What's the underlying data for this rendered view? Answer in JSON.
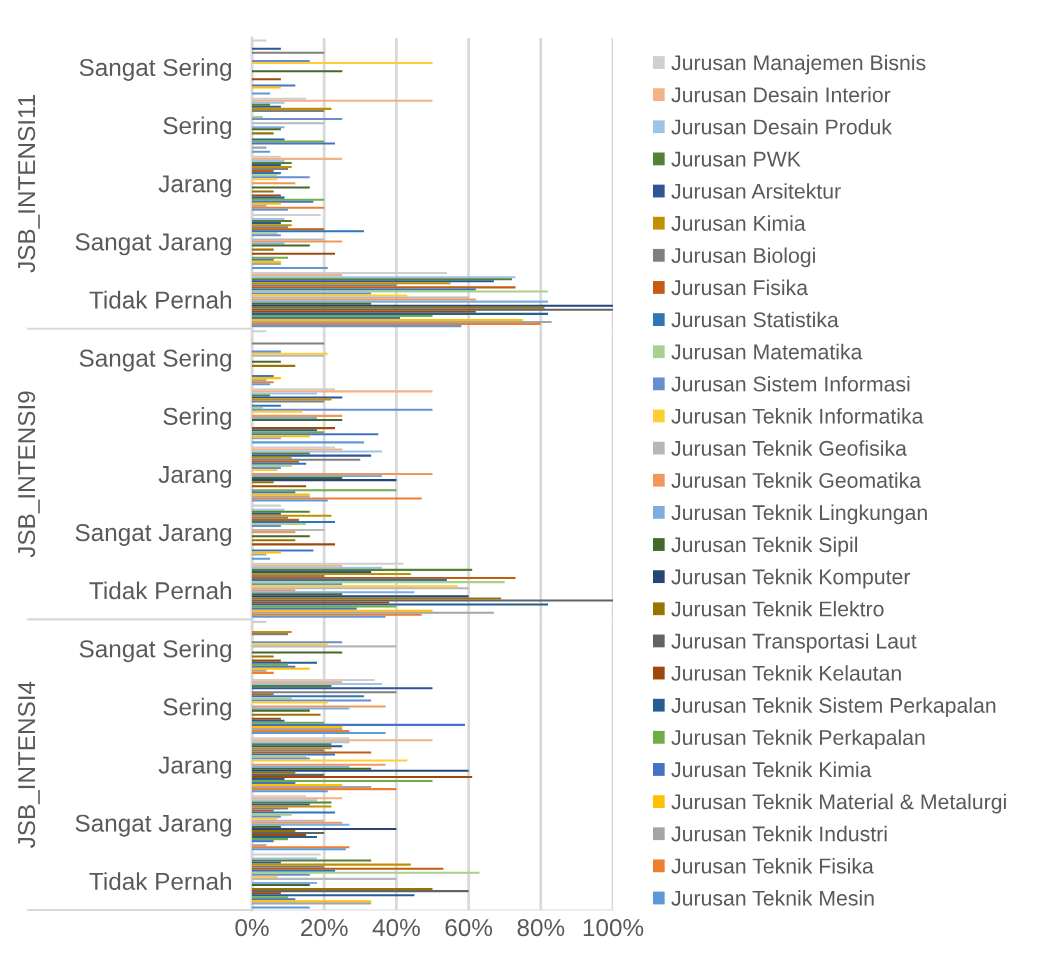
{
  "chart_data": [
    {
      "type": "bar",
      "orientation": "horizontal",
      "ylabel": "JSB_INTENSI11",
      "categories": [
        "Sangat Sering",
        "Sering",
        "Jarang",
        "Sangat Jarang",
        "Tidak Pernah"
      ],
      "xlim": [
        0,
        100
      ],
      "xticks": [
        0,
        20,
        40,
        60,
        80,
        100
      ],
      "grid": "x",
      "tick_labels": "y",
      "legend": "right",
      "series": [
        {
          "name": "Jurusan Manajemen Bisnis",
          "color": "#cfcfcf",
          "values": [
            4,
            15,
            8,
            19,
            54
          ]
        },
        {
          "name": "Jurusan Desain Interior",
          "color": "#f4b183",
          "values": [
            null,
            50,
            25,
            null,
            25
          ]
        },
        {
          "name": "Jurusan Desain Produk",
          "color": "#9dc3e6",
          "values": [
            null,
            9,
            9,
            9,
            73
          ]
        },
        {
          "name": "Jurusan PWK",
          "color": "#548235",
          "values": [
            null,
            5,
            11,
            11,
            72
          ]
        },
        {
          "name": "Jurusan Arsitektur",
          "color": "#2f5597",
          "values": [
            8,
            8,
            8,
            8,
            67
          ]
        },
        {
          "name": "Jurusan Kimia",
          "color": "#bf9000",
          "values": [
            null,
            22,
            11,
            11,
            55
          ]
        },
        {
          "name": "Jurusan Biologi",
          "color": "#7f7f7f",
          "values": [
            20,
            20,
            10,
            10,
            40
          ]
        },
        {
          "name": "Jurusan Fisika",
          "color": "#c55a11",
          "values": [
            null,
            null,
            6,
            20,
            73
          ]
        },
        {
          "name": "Jurusan Statistika",
          "color": "#2e75b6",
          "values": [
            null,
            null,
            8,
            31,
            62
          ]
        },
        {
          "name": "Jurusan Matematika",
          "color": "#a9d18e",
          "values": [
            null,
            3,
            7,
            7,
            82
          ]
        },
        {
          "name": "Jurusan Sistem Informasi",
          "color": "#698ed0",
          "values": [
            16,
            25,
            16,
            8,
            33
          ]
        },
        {
          "name": "Jurusan Teknik Informatika",
          "color": "#ffcd33",
          "values": [
            50,
            null,
            7,
            null,
            43
          ]
        },
        {
          "name": "Jurusan Teknik Geofisika",
          "color": "#b7b7b7",
          "values": [
            null,
            20,
            null,
            20,
            60
          ]
        },
        {
          "name": "Jurusan Teknik Geomatika",
          "color": "#f1975a",
          "values": [
            null,
            null,
            12,
            25,
            62
          ]
        },
        {
          "name": "Jurusan Teknik Lingkungan",
          "color": "#7cafdd",
          "values": [
            null,
            9,
            null,
            9,
            82
          ]
        },
        {
          "name": "Jurusan Teknik Sipil",
          "color": "#43682b",
          "values": [
            25,
            8,
            16,
            16,
            33
          ]
        },
        {
          "name": "Jurusan Teknik Komputer",
          "color": "#264478",
          "values": [
            null,
            null,
            null,
            null,
            100
          ]
        },
        {
          "name": "Jurusan Teknik Elektro",
          "color": "#997300",
          "values": [
            null,
            6,
            6,
            6,
            81
          ]
        },
        {
          "name": "Jurusan Transportasi Laut",
          "color": "#636363",
          "values": [
            null,
            null,
            null,
            null,
            100
          ]
        },
        {
          "name": "Jurusan Teknik Kelautan",
          "color": "#9e480e",
          "values": [
            8,
            null,
            8,
            23,
            62
          ]
        },
        {
          "name": "Jurusan Teknik Sistem Perkapalan",
          "color": "#255e91",
          "values": [
            null,
            9,
            9,
            null,
            82
          ]
        },
        {
          "name": "Jurusan Teknik Perkapalan",
          "color": "#70ad47",
          "values": [
            null,
            20,
            20,
            10,
            50
          ]
        },
        {
          "name": "Jurusan Teknik Kimia",
          "color": "#4472c4",
          "values": [
            12,
            23,
            17,
            6,
            41
          ]
        },
        {
          "name": "Jurusan Teknik Material & Metalurgi",
          "color": "#ffc000",
          "values": [
            8,
            null,
            8,
            8,
            75
          ]
        },
        {
          "name": "Jurusan Teknik Industri",
          "color": "#a5a5a5",
          "values": [
            null,
            4,
            4,
            8,
            83
          ]
        },
        {
          "name": "Jurusan Teknik Fisika",
          "color": "#ed7d31",
          "values": [
            null,
            null,
            20,
            null,
            80
          ]
        },
        {
          "name": "Jurusan Teknik Mesin",
          "color": "#5b9bd5",
          "values": [
            5,
            5,
            10,
            21,
            58
          ]
        }
      ]
    },
    {
      "type": "bar",
      "orientation": "horizontal",
      "ylabel": "JSB_INTENSI9",
      "categories": [
        "Sangat Sering",
        "Sering",
        "Jarang",
        "Sangat Jarang",
        "Tidak Pernah"
      ],
      "xlim": [
        0,
        100
      ],
      "xticks": [
        0,
        20,
        40,
        60,
        80,
        100
      ],
      "grid": "x",
      "tick_labels": "y",
      "series": [
        {
          "color": "#cfcfcf",
          "values": [
            4,
            23,
            23,
            8,
            42
          ]
        },
        {
          "color": "#f4b183",
          "values": [
            null,
            50,
            25,
            null,
            25
          ]
        },
        {
          "color": "#9dc3e6",
          "values": [
            null,
            18,
            36,
            9,
            36
          ]
        },
        {
          "color": "#548235",
          "values": [
            null,
            5,
            16,
            16,
            61
          ]
        },
        {
          "color": "#2f5597",
          "values": [
            null,
            25,
            33,
            8,
            33
          ]
        },
        {
          "color": "#bf9000",
          "values": [
            null,
            22,
            11,
            22,
            44
          ]
        },
        {
          "color": "#7f7f7f",
          "values": [
            20,
            20,
            30,
            10,
            20
          ]
        },
        {
          "color": "#c55a11",
          "values": [
            null,
            null,
            13,
            13,
            73
          ]
        },
        {
          "color": "#2e75b6",
          "values": [
            null,
            8,
            15,
            23,
            54
          ]
        },
        {
          "color": "#a9d18e",
          "values": [
            null,
            3,
            11,
            15,
            70
          ]
        },
        {
          "color": "#698ed0",
          "values": [
            8,
            50,
            8,
            8,
            25
          ]
        },
        {
          "color": "#ffcd33",
          "values": [
            21,
            14,
            7,
            null,
            57
          ]
        },
        {
          "color": "#b7b7b7",
          "values": [
            20,
            null,
            null,
            20,
            60
          ]
        },
        {
          "color": "#f1975a",
          "values": [
            null,
            25,
            50,
            12,
            12
          ]
        },
        {
          "color": "#7cafdd",
          "values": [
            null,
            18,
            36,
            null,
            45
          ]
        },
        {
          "color": "#43682b",
          "values": [
            8,
            25,
            25,
            16,
            25
          ]
        },
        {
          "color": "#264478",
          "values": [
            null,
            null,
            40,
            null,
            60
          ]
        },
        {
          "color": "#997300",
          "values": [
            12,
            null,
            6,
            12,
            69
          ]
        },
        {
          "color": "#636363",
          "values": [
            null,
            null,
            null,
            null,
            100
          ]
        },
        {
          "color": "#9e480e",
          "values": [
            null,
            23,
            15,
            23,
            38
          ]
        },
        {
          "color": "#255e91",
          "values": [
            null,
            18,
            null,
            null,
            82
          ]
        },
        {
          "color": "#70ad47",
          "values": [
            null,
            20,
            40,
            null,
            40
          ]
        },
        {
          "color": "#4472c4",
          "values": [
            6,
            35,
            12,
            17,
            29
          ]
        },
        {
          "color": "#ffc000",
          "values": [
            8,
            16,
            16,
            8,
            50
          ]
        },
        {
          "color": "#a5a5a5",
          "values": [
            4,
            8,
            16,
            4,
            67
          ]
        },
        {
          "color": "#ed7d31",
          "values": [
            6,
            null,
            47,
            null,
            47
          ]
        },
        {
          "color": "#5b9bd5",
          "values": [
            5,
            31,
            21,
            5,
            37
          ]
        }
      ]
    },
    {
      "type": "bar",
      "orientation": "horizontal",
      "ylabel": "JSB_INTENSI4",
      "categories": [
        "Sangat Sering",
        "Sering",
        "Jarang",
        "Sangat Jarang",
        "Tidak Pernah"
      ],
      "xlim": [
        0,
        100
      ],
      "xticks": [
        {
          "value": 0,
          "label": "0%"
        },
        {
          "value": 20,
          "label": "20%"
        },
        {
          "value": 40,
          "label": "40%"
        },
        {
          "value": 60,
          "label": "60%"
        },
        {
          "value": 80,
          "label": "80%"
        },
        {
          "value": 100,
          "label": "100%"
        }
      ],
      "grid": "x",
      "series": [
        {
          "color": "#cfcfcf",
          "values": [
            4,
            34,
            27,
            15,
            19
          ]
        },
        {
          "color": "#f4b183",
          "values": [
            null,
            25,
            50,
            25,
            null
          ]
        },
        {
          "color": "#9dc3e6",
          "values": [
            null,
            36,
            27,
            18,
            18
          ]
        },
        {
          "color": "#548235",
          "values": [
            null,
            22,
            22,
            22,
            33
          ]
        },
        {
          "color": "#2f5597",
          "values": [
            null,
            50,
            25,
            16,
            8
          ]
        },
        {
          "color": "#bf9000",
          "values": [
            11,
            null,
            22,
            22,
            44
          ]
        },
        {
          "color": "#7f7f7f",
          "values": [
            10,
            40,
            20,
            10,
            20
          ]
        },
        {
          "color": "#c55a11",
          "values": [
            null,
            6,
            33,
            6,
            53
          ]
        },
        {
          "color": "#2e75b6",
          "values": [
            null,
            31,
            23,
            23,
            23
          ]
        },
        {
          "color": "#a9d18e",
          "values": [
            null,
            11,
            15,
            11,
            63
          ]
        },
        {
          "color": "#698ed0",
          "values": [
            25,
            33,
            16,
            8,
            16
          ]
        },
        {
          "color": "#ffcd33",
          "values": [
            21,
            21,
            43,
            7,
            7
          ]
        },
        {
          "color": "#b7b7b7",
          "values": [
            40,
            null,
            null,
            20,
            40
          ]
        },
        {
          "color": "#f1975a",
          "values": [
            null,
            37,
            37,
            25,
            null
          ]
        },
        {
          "color": "#7cafdd",
          "values": [
            null,
            27,
            27,
            27,
            18
          ]
        },
        {
          "color": "#43682b",
          "values": [
            25,
            16,
            33,
            8,
            16
          ]
        },
        {
          "color": "#264478",
          "values": [
            null,
            null,
            60,
            40,
            null
          ]
        },
        {
          "color": "#997300",
          "values": [
            6,
            19,
            12,
            12,
            50
          ]
        },
        {
          "color": "#636363",
          "values": [
            null,
            null,
            20,
            20,
            60
          ]
        },
        {
          "color": "#9e480e",
          "values": [
            8,
            8,
            61,
            15,
            8
          ]
        },
        {
          "color": "#255e91",
          "values": [
            18,
            9,
            9,
            18,
            45
          ]
        },
        {
          "color": "#70ad47",
          "values": [
            10,
            20,
            50,
            10,
            10
          ]
        },
        {
          "color": "#4472c4",
          "values": [
            12,
            59,
            12,
            6,
            12
          ]
        },
        {
          "color": "#ffc000",
          "values": [
            16,
            25,
            25,
            null,
            33
          ]
        },
        {
          "color": "#a5a5a5",
          "values": [
            4,
            25,
            33,
            4,
            33
          ]
        },
        {
          "color": "#ed7d31",
          "values": [
            6,
            27,
            40,
            27,
            null
          ]
        },
        {
          "color": "#5b9bd5",
          "values": [
            null,
            37,
            21,
            26,
            16
          ]
        }
      ]
    }
  ]
}
